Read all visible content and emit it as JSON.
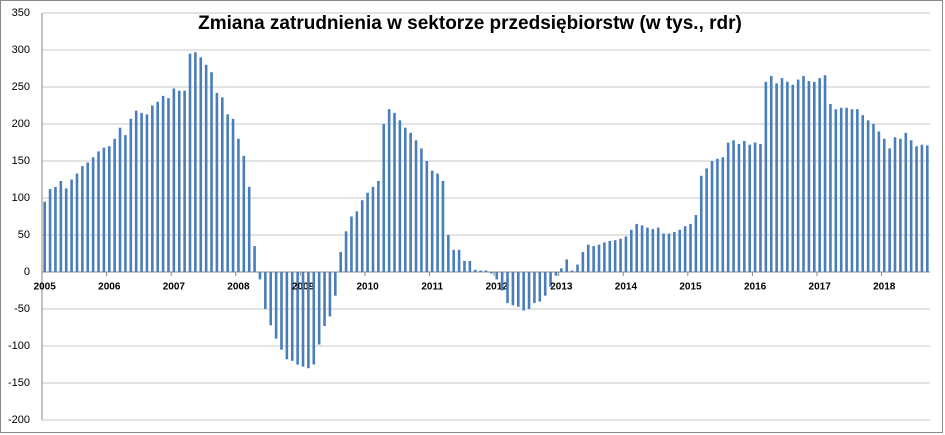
{
  "chart_data": {
    "type": "bar",
    "title": "Zmiana zatrudnienia w sektorze przedsiębiorstw (w tys., rdr)",
    "categories": [
      "2005",
      null,
      null,
      null,
      null,
      null,
      null,
      null,
      null,
      null,
      null,
      null,
      "2006",
      null,
      null,
      null,
      null,
      null,
      null,
      null,
      null,
      null,
      null,
      null,
      "2007",
      null,
      null,
      null,
      null,
      null,
      null,
      null,
      null,
      null,
      null,
      null,
      "2008",
      null,
      null,
      null,
      null,
      null,
      null,
      null,
      null,
      null,
      null,
      null,
      "2009",
      null,
      null,
      null,
      null,
      null,
      null,
      null,
      null,
      null,
      null,
      null,
      "2010",
      null,
      null,
      null,
      null,
      null,
      null,
      null,
      null,
      null,
      null,
      null,
      "2011",
      null,
      null,
      null,
      null,
      null,
      null,
      null,
      null,
      null,
      null,
      null,
      "2012",
      null,
      null,
      null,
      null,
      null,
      null,
      null,
      null,
      null,
      null,
      null,
      "2013",
      null,
      null,
      null,
      null,
      null,
      null,
      null,
      null,
      null,
      null,
      null,
      "2014",
      null,
      null,
      null,
      null,
      null,
      null,
      null,
      null,
      null,
      null,
      null,
      "2015",
      null,
      null,
      null,
      null,
      null,
      null,
      null,
      null,
      null,
      null,
      null,
      "2016",
      null,
      null,
      null,
      null,
      null,
      null,
      null,
      null,
      null,
      null,
      null,
      "2017",
      null,
      null,
      null,
      null,
      null,
      null,
      null,
      null,
      null,
      null,
      null,
      "2018",
      null,
      null,
      null,
      null,
      null,
      null,
      null,
      null
    ],
    "values": [
      95,
      112,
      115,
      123,
      113,
      125,
      133,
      143,
      148,
      155,
      163,
      168,
      170,
      180,
      195,
      185,
      207,
      218,
      215,
      213,
      225,
      230,
      238,
      235,
      248,
      245,
      245,
      295,
      297,
      290,
      280,
      270,
      242,
      236,
      213,
      207,
      180,
      157,
      115,
      35,
      -10,
      -50,
      -72,
      -90,
      -105,
      -118,
      -120,
      -125,
      -128,
      -130,
      -125,
      -98,
      -73,
      -60,
      -32,
      27,
      55,
      75,
      82,
      97,
      107,
      115,
      123,
      200,
      220,
      215,
      205,
      195,
      188,
      178,
      167,
      150,
      137,
      133,
      123,
      50,
      30,
      30,
      15,
      15,
      3,
      2,
      2,
      -2,
      -10,
      -25,
      -42,
      -45,
      -47,
      -52,
      -50,
      -42,
      -40,
      -32,
      -20,
      -5,
      5,
      17,
      2,
      10,
      27,
      37,
      35,
      37,
      40,
      42,
      43,
      45,
      48,
      57,
      65,
      63,
      60,
      58,
      60,
      52,
      52,
      54,
      57,
      62,
      65,
      77,
      130,
      140,
      150,
      153,
      155,
      175,
      178,
      173,
      177,
      172,
      175,
      173,
      257,
      265,
      255,
      262,
      257,
      253,
      260,
      265,
      258,
      257,
      262,
      266,
      227,
      220,
      222,
      222,
      220,
      220,
      212,
      205,
      200,
      190,
      180,
      167,
      182,
      180,
      188,
      178,
      170,
      172,
      171
    ],
    "color": "#4a7ebb",
    "ylim": [
      -200,
      350
    ],
    "yticks": [
      -200,
      -150,
      -100,
      -50,
      0,
      50,
      100,
      150,
      200,
      250,
      300,
      350
    ],
    "grid": true
  }
}
